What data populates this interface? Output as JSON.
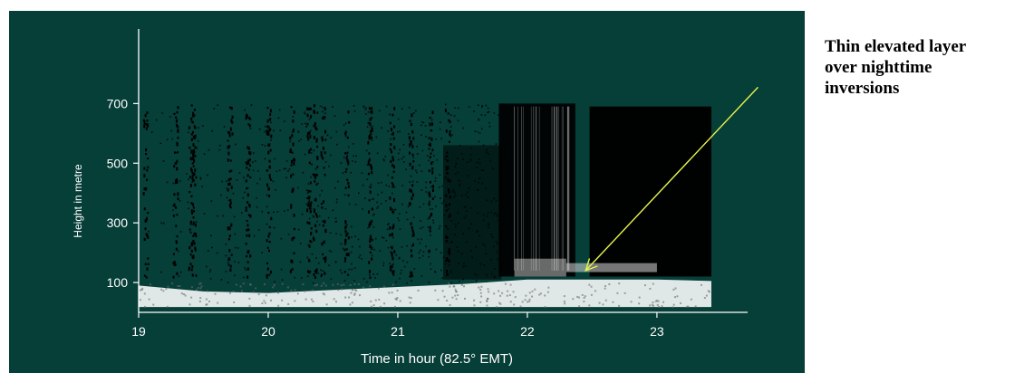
{
  "chart_data": {
    "type": "heatmap",
    "description_style": "sodar echogram",
    "xlabel": "Time in hour (82.5° EMT)",
    "ylabel": "Height in metre",
    "x_ticks": [
      19,
      20,
      21,
      22,
      23
    ],
    "y_ticks": [
      100,
      300,
      500,
      700
    ],
    "xlim": [
      19.0,
      23.7
    ],
    "ylim": [
      0,
      950
    ],
    "grid": false,
    "colors": {
      "background": "#063e38",
      "echo": "#000000",
      "strong_echo": "#ffffff",
      "annotation_arrow": "#e8f54a",
      "axis": "#ffffff"
    },
    "annotation": {
      "lines": [
        "Thin  elevated layer",
        "over nighttime",
        "inversions"
      ],
      "arrow_from": {
        "x": 23.5,
        "y": 700
      },
      "arrow_to": {
        "x": 22.45,
        "y": 140
      }
    }
  }
}
